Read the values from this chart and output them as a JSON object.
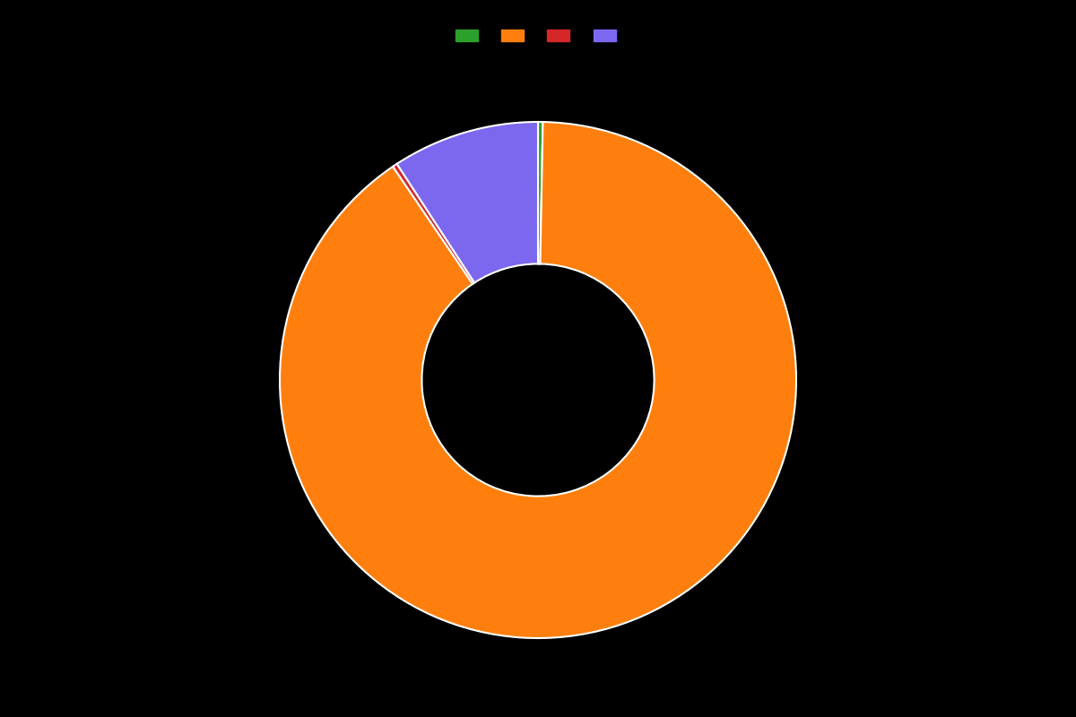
{
  "labels": [
    "",
    "",
    "",
    ""
  ],
  "values": [
    0.3,
    90.2,
    0.3,
    9.2
  ],
  "colors": [
    "#2ca02c",
    "#ff7f0e",
    "#d62728",
    "#7b68ee"
  ],
  "background_color": "#000000",
  "wedge_edge_color": "#ffffff",
  "wedge_linewidth": 1.5,
  "donut_width": 0.55,
  "figsize": [
    12.0,
    8.0
  ],
  "dpi": 100,
  "legend_ncol": 4,
  "startangle": 90
}
